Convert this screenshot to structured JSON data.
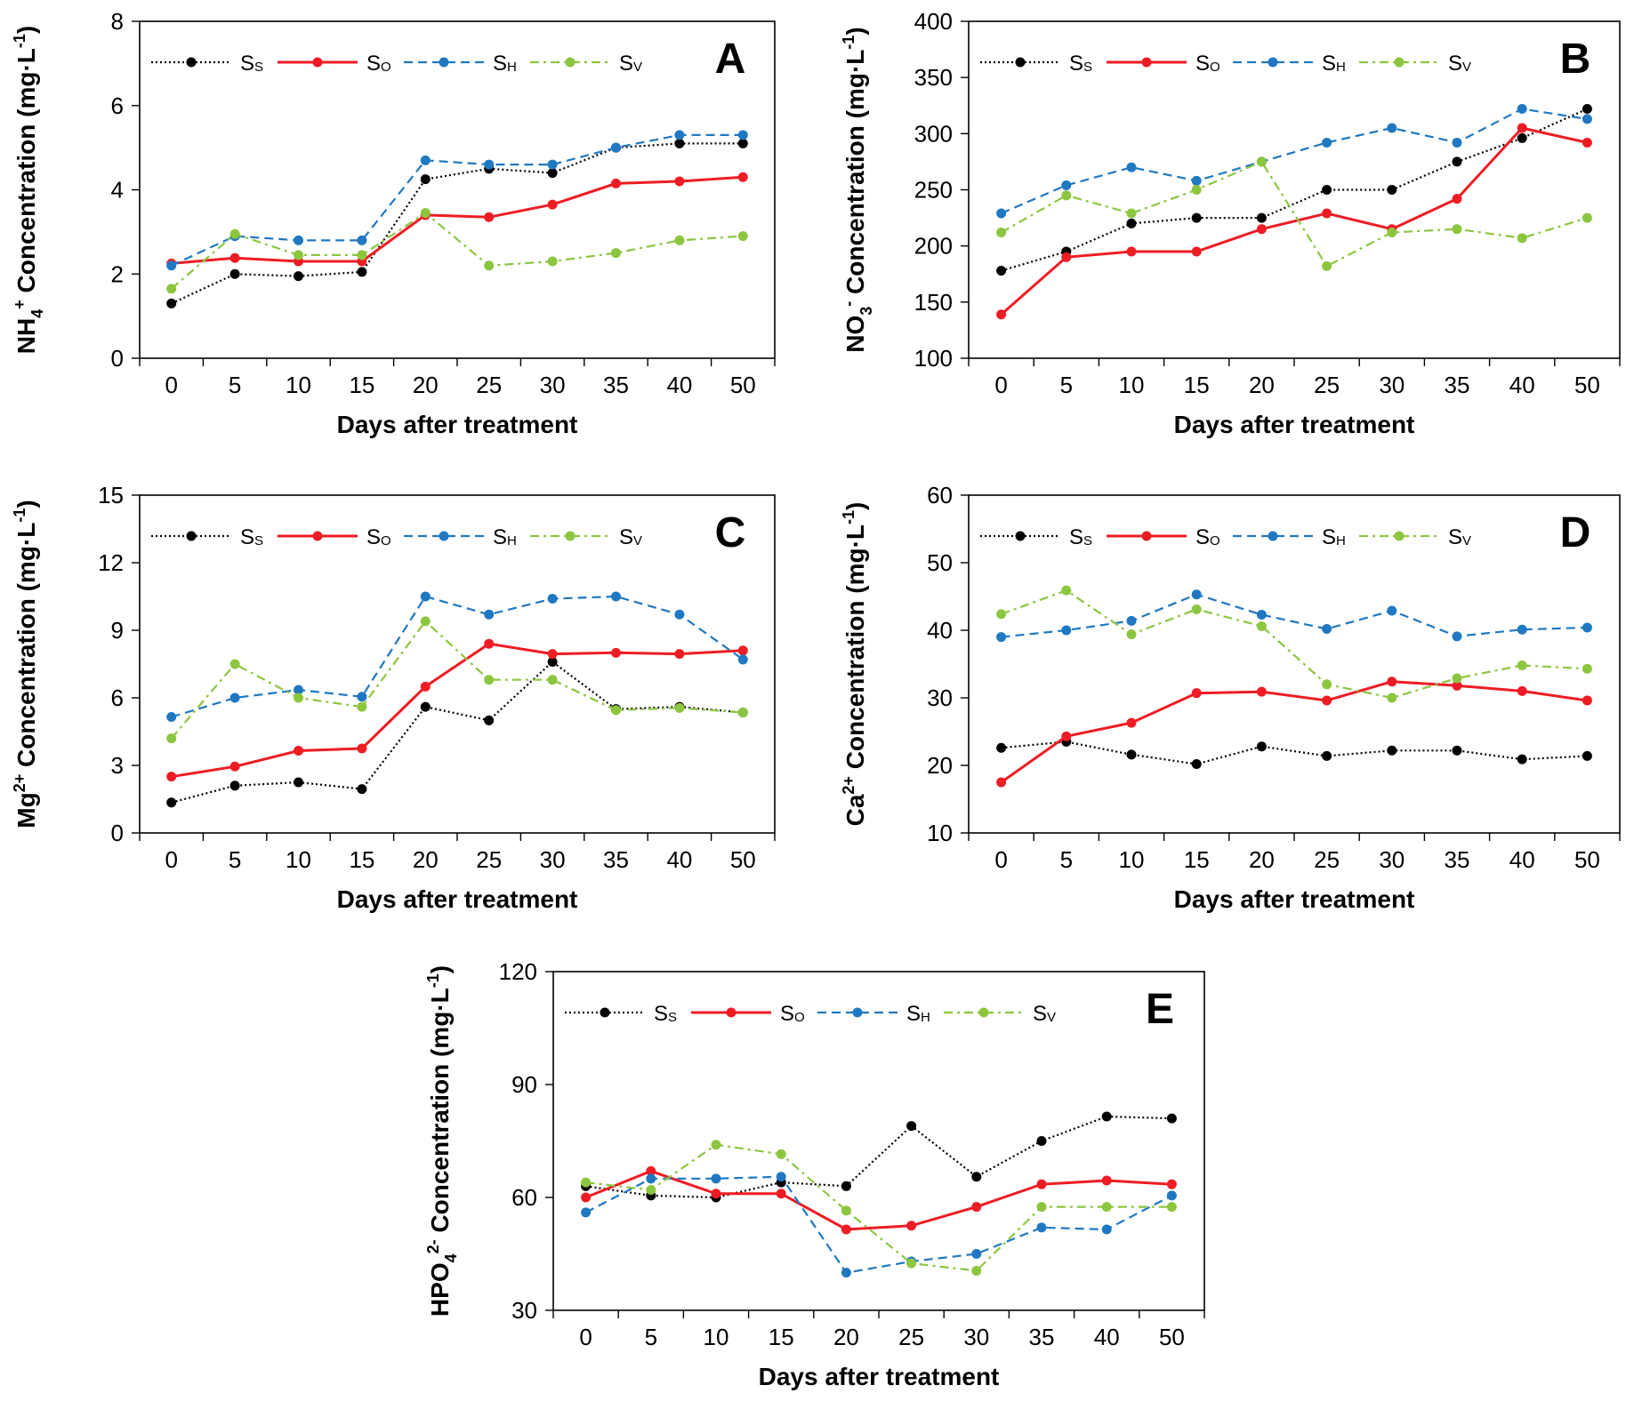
{
  "chart_data": [
    {
      "type": "line",
      "panel_label": "A",
      "ylabel_html": "NH<tspan dy='-8' font-size='18'>4</tspan><tspan dy='0' font-size='18'>+</tspan><tspan dy='8'> Concentration (mg·L</tspan><tspan dy='-10' font-size='18'>-1</tspan><tspan dy='10'>)</tspan>",
      "ylabel": "NH4+ Concentration (mg·L-1)",
      "xlabel": "Days after treatment",
      "x": [
        "0",
        "5",
        "10",
        "15",
        "20",
        "25",
        "30",
        "35",
        "40",
        "50"
      ],
      "ylim": [
        0,
        8
      ],
      "yticks": [
        0,
        2,
        4,
        6,
        8
      ],
      "series": [
        {
          "name": "SS",
          "values": [
            1.3,
            2.0,
            1.95,
            2.05,
            4.25,
            4.5,
            4.4,
            5.0,
            5.1,
            5.1
          ]
        },
        {
          "name": "SO",
          "values": [
            2.25,
            2.38,
            2.3,
            2.3,
            3.4,
            3.35,
            3.65,
            4.15,
            4.2,
            4.3
          ]
        },
        {
          "name": "SH",
          "values": [
            2.2,
            2.9,
            2.8,
            2.8,
            4.7,
            4.6,
            4.6,
            5.0,
            5.3,
            5.3
          ]
        },
        {
          "name": "SV",
          "values": [
            1.65,
            2.95,
            2.45,
            2.45,
            3.45,
            2.2,
            2.3,
            2.5,
            2.8,
            2.9
          ]
        }
      ]
    },
    {
      "type": "line",
      "panel_label": "B",
      "ylabel": "NO3- Concentration (mg·L-1)",
      "xlabel": "Days after treatment",
      "x": [
        "0",
        "5",
        "10",
        "15",
        "20",
        "25",
        "30",
        "35",
        "40",
        "50"
      ],
      "ylim": [
        100,
        400
      ],
      "yticks": [
        100,
        150,
        200,
        250,
        300,
        350,
        400
      ],
      "series": [
        {
          "name": "SS",
          "values": [
            178,
            195,
            220,
            225,
            225,
            250,
            250,
            275,
            296,
            322
          ]
        },
        {
          "name": "SO",
          "values": [
            139,
            190,
            195,
            195,
            215,
            229,
            215,
            242,
            305,
            292
          ]
        },
        {
          "name": "SH",
          "values": [
            229,
            254,
            270,
            258,
            275,
            292,
            305,
            292,
            322,
            313
          ]
        },
        {
          "name": "SV",
          "values": [
            212,
            245,
            229,
            250,
            275,
            182,
            212,
            215,
            207,
            225
          ]
        }
      ]
    },
    {
      "type": "line",
      "panel_label": "C",
      "ylabel": "Mg2+ Concentration (mg·L-1)",
      "xlabel": "Days after treatment",
      "x": [
        "0",
        "5",
        "10",
        "15",
        "20",
        "25",
        "30",
        "35",
        "40",
        "50"
      ],
      "ylim": [
        0,
        15
      ],
      "yticks": [
        0,
        3,
        6,
        9,
        12,
        15
      ],
      "series": [
        {
          "name": "SS",
          "values": [
            1.35,
            2.1,
            2.25,
            1.95,
            5.6,
            5.0,
            7.6,
            5.5,
            5.6,
            5.35
          ]
        },
        {
          "name": "SO",
          "values": [
            2.5,
            2.95,
            3.65,
            3.75,
            6.5,
            8.4,
            7.95,
            8.0,
            7.95,
            8.1
          ]
        },
        {
          "name": "SH",
          "values": [
            5.15,
            6.0,
            6.35,
            6.05,
            10.5,
            9.7,
            10.4,
            10.5,
            9.7,
            7.7
          ]
        },
        {
          "name": "SV",
          "values": [
            4.2,
            7.5,
            6.0,
            5.6,
            9.4,
            6.8,
            6.8,
            5.45,
            5.55,
            5.35
          ]
        }
      ]
    },
    {
      "type": "line",
      "panel_label": "D",
      "ylabel": "Ca2+ Concentration (mg·L-1)",
      "xlabel": "Days after treatment",
      "x": [
        "0",
        "5",
        "10",
        "15",
        "20",
        "25",
        "30",
        "35",
        "40",
        "50"
      ],
      "ylim": [
        10,
        60
      ],
      "yticks": [
        10,
        20,
        30,
        40,
        50,
        60
      ],
      "series": [
        {
          "name": "SS",
          "values": [
            22.6,
            23.5,
            21.6,
            20.2,
            22.8,
            21.4,
            22.2,
            22.2,
            20.9,
            21.4
          ]
        },
        {
          "name": "SO",
          "values": [
            17.5,
            24.3,
            26.3,
            30.7,
            30.9,
            29.6,
            32.4,
            31.8,
            31.0,
            29.6
          ]
        },
        {
          "name": "SH",
          "values": [
            39.0,
            40.0,
            41.4,
            45.3,
            42.3,
            40.2,
            42.9,
            39.1,
            40.1,
            40.4
          ]
        },
        {
          "name": "SV",
          "values": [
            42.4,
            45.9,
            39.4,
            43.1,
            40.6,
            32.0,
            30.0,
            32.9,
            34.8,
            34.3
          ]
        }
      ]
    },
    {
      "type": "line",
      "panel_label": "E",
      "ylabel": "HPO42- Concentration (mg·L-1)",
      "xlabel": "Days after treatment",
      "x": [
        "0",
        "5",
        "10",
        "15",
        "20",
        "25",
        "30",
        "35",
        "40",
        "50"
      ],
      "ylim": [
        30,
        120
      ],
      "yticks": [
        30,
        60,
        90,
        120
      ],
      "series": [
        {
          "name": "SS",
          "values": [
            63,
            60.5,
            60,
            64,
            63,
            79,
            65.5,
            75,
            81.5,
            81
          ]
        },
        {
          "name": "SO",
          "values": [
            60,
            67,
            61,
            61,
            51.5,
            52.5,
            57.5,
            63.5,
            64.5,
            63.5
          ]
        },
        {
          "name": "SH",
          "values": [
            56,
            65,
            65,
            65.5,
            40,
            43,
            45,
            52,
            51.5,
            60.5
          ]
        },
        {
          "name": "SV",
          "values": [
            64,
            62,
            74,
            71.5,
            56.5,
            42.5,
            40.5,
            57.5,
            57.5,
            57.5
          ]
        }
      ]
    }
  ],
  "legend": [
    {
      "main": "S",
      "sub": "S"
    },
    {
      "main": "S",
      "sub": "O"
    },
    {
      "main": "S",
      "sub": "H"
    },
    {
      "main": "S",
      "sub": "V"
    }
  ],
  "styles": {
    "SS": {
      "color": "#000000",
      "dash": "2,3",
      "width": 2.2
    },
    "SO": {
      "color": "#ee1c24",
      "dash": "",
      "width": 3
    },
    "SH": {
      "color": "#1f78c1",
      "dash": "10,6",
      "width": 2.2
    },
    "SV": {
      "color": "#8cc63f",
      "dash": "10,5,3,5",
      "width": 2.2
    }
  },
  "ylabel_parts": [
    [
      [
        "NH",
        0
      ],
      [
        "4",
        1
      ],
      [
        "+",
        -1
      ],
      [
        " Concentration (mg·L",
        0
      ],
      [
        "-1",
        -1
      ],
      [
        ")",
        0
      ]
    ],
    [
      [
        "NO",
        0
      ],
      [
        "3",
        1
      ],
      [
        "-",
        -1
      ],
      [
        " Concentration (mg·L",
        0
      ],
      [
        "-1",
        -1
      ],
      [
        ")",
        0
      ]
    ],
    [
      [
        "Mg",
        0
      ],
      [
        "2+",
        -1
      ],
      [
        " Concentration (mg·L",
        0
      ],
      [
        "-1",
        -1
      ],
      [
        ")",
        0
      ]
    ],
    [
      [
        "Ca",
        0
      ],
      [
        "2+",
        -1
      ],
      [
        " Concentration (mg·L",
        0
      ],
      [
        "-1",
        -1
      ],
      [
        ")",
        0
      ]
    ],
    [
      [
        "HPO",
        0
      ],
      [
        "4",
        1
      ],
      [
        "2-",
        -1
      ],
      [
        " Concentration (mg·L",
        0
      ],
      [
        "-1",
        -1
      ],
      [
        ")",
        0
      ]
    ]
  ]
}
